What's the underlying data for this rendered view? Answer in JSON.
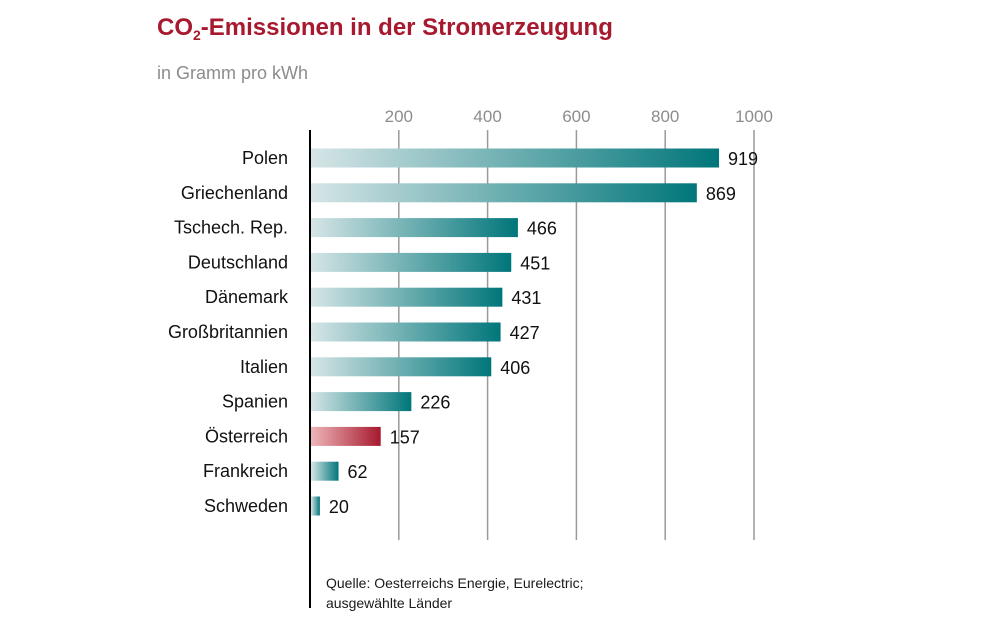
{
  "chart_data": {
    "type": "bar",
    "orientation": "horizontal",
    "title_prefix": "CO",
    "title_subscript": "2",
    "title_suffix": "-Emissionen in der Stromerzeugung",
    "subtitle": "in Gramm pro kWh",
    "categories": [
      "Polen",
      "Griechenland",
      "Tschech. Rep.",
      "Deutschland",
      "Dänemark",
      "Großbritannien",
      "Italien",
      "Spanien",
      "Österreich",
      "Frankreich",
      "Schweden"
    ],
    "values": [
      919,
      869,
      466,
      451,
      431,
      427,
      406,
      226,
      157,
      62,
      20
    ],
    "highlight": "Österreich",
    "xticks": [
      200,
      400,
      600,
      800,
      1000
    ],
    "xlim": [
      0,
      1000
    ],
    "grid": true,
    "colors": {
      "bar_dark": "#00767a",
      "bar_light": "#d6e5e6",
      "highlight_dark": "#a6192e",
      "highlight_light": "#eeb6b9",
      "title": "#a6192e",
      "grid": "#999999"
    },
    "source_line1": "Quelle: Oesterreichs Energie, Eurelectric;",
    "source_line2": "ausgewählte Länder"
  }
}
